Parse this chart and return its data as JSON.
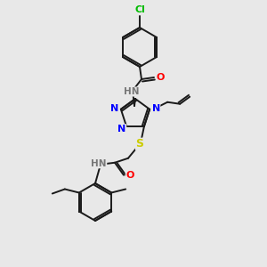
{
  "bg_color": "#e8e8e8",
  "bond_color": "#1a1a1a",
  "atom_colors": {
    "N": "#0000ff",
    "O": "#ff0000",
    "S": "#cccc00",
    "Cl": "#00bb00",
    "H": "#777777",
    "C": "#1a1a1a"
  },
  "figsize": [
    3.0,
    3.0
  ],
  "dpi": 100,
  "lw": 1.4,
  "fs": 7.5
}
